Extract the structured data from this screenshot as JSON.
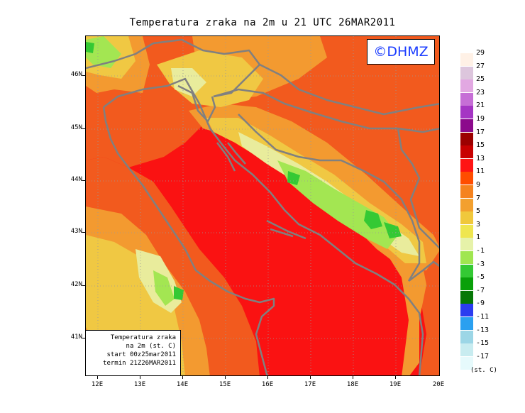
{
  "title": "Temperatura zraka na 2m u 21 UTC 26MAR2011",
  "logo": "©DHMZ",
  "info_box": [
    "Temperatura zraka",
    "na 2m (st. C)",
    "start 00z25mar2011",
    "termin 21Z26MAR2011"
  ],
  "lat_labels": [
    "46N",
    "45N",
    "44N",
    "43N",
    "42N",
    "41N"
  ],
  "lon_labels": [
    "12E",
    "13E",
    "14E",
    "15E",
    "16E",
    "17E",
    "18E",
    "19E",
    "20E"
  ],
  "legend": {
    "unit": "(st. C)",
    "labels": [
      "29",
      "27",
      "25",
      "23",
      "21",
      "19",
      "17",
      "15",
      "13",
      "11",
      "9",
      "7",
      "5",
      "3",
      "1",
      "-1",
      "-3",
      "-5",
      "-7",
      "-9",
      "-11",
      "-13",
      "-15",
      "-17"
    ],
    "colors": [
      "#fff1e6",
      "#ddc6dd",
      "#e2a8e2",
      "#c66ed6",
      "#a535c4",
      "#8c0a8c",
      "#9c0000",
      "#c80000",
      "#ff1414",
      "#ff4d00",
      "#f5821e",
      "#f3a02f",
      "#f0c83c",
      "#efe650",
      "#e6f2a9",
      "#a0e650",
      "#34c934",
      "#0aa00a",
      "#067806",
      "#2b3cf0",
      "#2aa0f0",
      "#9cd6e6",
      "#c8ecf0",
      "#e6fafc"
    ]
  },
  "map": {
    "colors": {
      "sea_hot": "#fa1212",
      "warm": "#f25a1e",
      "mild": "#f39a30",
      "cool": "#f0c843",
      "cold": "#e9ec9c",
      "freezing": "#a3e652",
      "subzero": "#34c934",
      "coast": "#808080"
    }
  }
}
